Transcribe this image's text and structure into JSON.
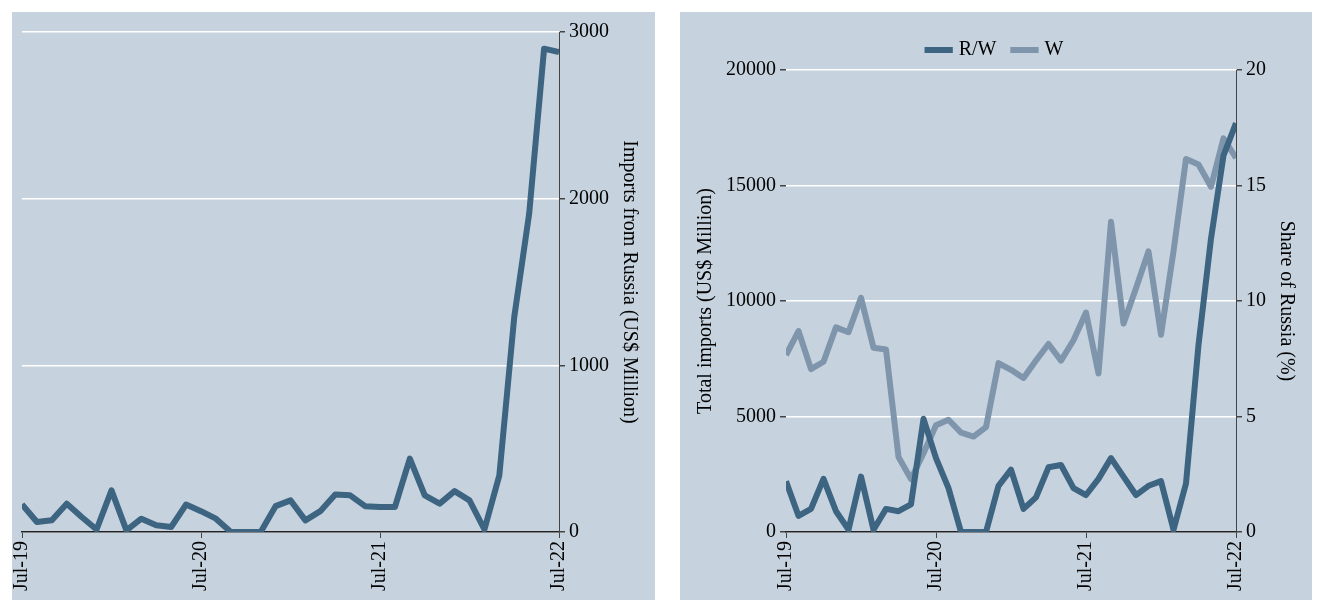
{
  "chart_data": [
    {
      "type": "line",
      "ylabel": "Imports from Russia (US$ Million)",
      "x": [
        "2019-07",
        "2019-08",
        "2019-09",
        "2019-10",
        "2019-11",
        "2019-12",
        "2020-01",
        "2020-02",
        "2020-03",
        "2020-04",
        "2020-05",
        "2020-06",
        "2020-07",
        "2020-08",
        "2020-09",
        "2020-10",
        "2020-11",
        "2020-12",
        "2021-01",
        "2021-02",
        "2021-03",
        "2021-04",
        "2021-05",
        "2021-06",
        "2021-07",
        "2021-08",
        "2021-09",
        "2021-10",
        "2021-11",
        "2021-12",
        "2022-01",
        "2022-02",
        "2022-03",
        "2022-04",
        "2022-05",
        "2022-06",
        "2022-07"
      ],
      "series": [
        {
          "color": "#3d6480",
          "values": [
            166,
            60,
            70,
            170,
            90,
            15,
            250,
            10,
            80,
            40,
            30,
            165,
            125,
            80,
            0,
            0,
            0,
            155,
            190,
            70,
            125,
            225,
            220,
            155,
            150,
            150,
            440,
            220,
            170,
            245,
            190,
            15,
            340,
            1290,
            1910,
            2900,
            2880
          ]
        }
      ],
      "xlim": [
        "2019-07",
        "2022-07"
      ],
      "xticks": [
        {
          "value": "2019-07",
          "label": "Jul-19"
        },
        {
          "value": "2020-07",
          "label": "Jul-20"
        },
        {
          "value": "2021-07",
          "label": "Jul-21"
        },
        {
          "value": "2022-07",
          "label": "Jul-22"
        }
      ],
      "ylim": [
        0,
        3000
      ],
      "yticks": [
        0,
        1000,
        2000,
        3000
      ],
      "grid": "y",
      "legend": false
    },
    {
      "type": "line",
      "ylabel": "Total imports (US$ Million)",
      "y2label": "Share of Russia (%)",
      "x": [
        "2019-07",
        "2019-08",
        "2019-09",
        "2019-10",
        "2019-11",
        "2019-12",
        "2020-01",
        "2020-02",
        "2020-03",
        "2020-04",
        "2020-05",
        "2020-06",
        "2020-07",
        "2020-08",
        "2020-09",
        "2020-10",
        "2020-11",
        "2020-12",
        "2021-01",
        "2021-02",
        "2021-03",
        "2021-04",
        "2021-05",
        "2021-06",
        "2021-07",
        "2021-08",
        "2021-09",
        "2021-10",
        "2021-11",
        "2021-12",
        "2022-01",
        "2022-02",
        "2022-03",
        "2022-04",
        "2022-05",
        "2022-06",
        "2022-07"
      ],
      "series": [
        {
          "name": "R/W",
          "color": "#3d6480",
          "axis": "y2",
          "values": [
            2.2,
            0.7,
            1.0,
            2.3,
            0.9,
            0.1,
            2.4,
            0.1,
            1.0,
            0.9,
            1.2,
            4.9,
            3.2,
            1.9,
            0,
            0,
            0,
            2.0,
            2.7,
            1.0,
            1.5,
            2.8,
            2.9,
            1.9,
            1.6,
            2.3,
            3.2,
            2.4,
            1.6,
            2.0,
            2.2,
            0.1,
            2.1,
            8.1,
            12.7,
            16.3,
            17.7
          ]
        },
        {
          "name": "W",
          "color": "#7f95ab",
          "values": [
            7660,
            8700,
            7050,
            7370,
            8860,
            8650,
            10140,
            7980,
            7900,
            3250,
            2290,
            3410,
            4620,
            4860,
            4300,
            4130,
            4540,
            7310,
            7020,
            6670,
            7420,
            8140,
            7420,
            8300,
            9500,
            6860,
            13430,
            9020,
            10550,
            12150,
            8540,
            12150,
            16150,
            15910,
            14950,
            17040,
            16190
          ]
        }
      ],
      "xlim": [
        "2019-07",
        "2022-07"
      ],
      "xticks": [
        {
          "value": "2019-07",
          "label": "Jul-19"
        },
        {
          "value": "2020-07",
          "label": "Jul-20"
        },
        {
          "value": "2021-07",
          "label": "Jul-21"
        },
        {
          "value": "2022-07",
          "label": "Jul-22"
        }
      ],
      "ylim": [
        0,
        20000
      ],
      "yticks": [
        0,
        5000,
        10000,
        15000,
        20000
      ],
      "y2lim": [
        0,
        20
      ],
      "y2ticks": [
        0,
        5,
        10,
        15,
        20
      ],
      "grid": "y",
      "legend": "top"
    }
  ]
}
